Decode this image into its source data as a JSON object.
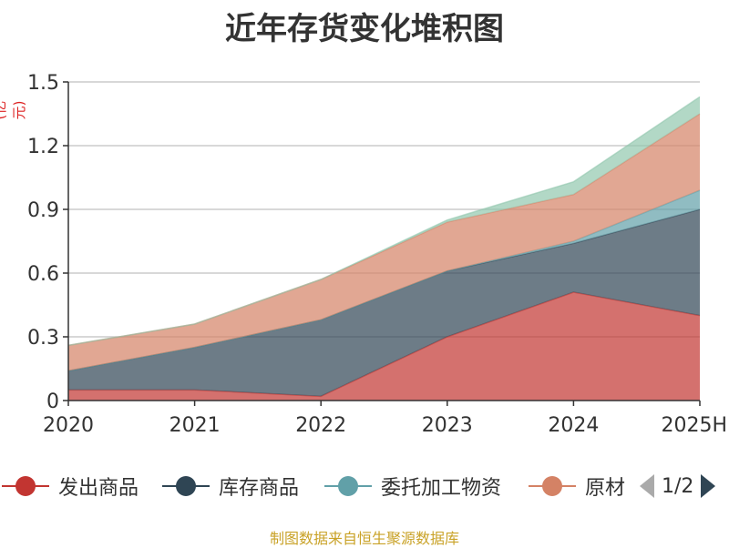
{
  "title": "近年存货变化堆积图",
  "unit": "(亿元)",
  "source": "制图数据来自恒生聚源数据库",
  "pager": {
    "label": "1/2"
  },
  "chart_data": {
    "type": "area",
    "stacked": true,
    "categories": [
      "2020",
      "2021",
      "2022",
      "2023",
      "2024",
      "2025H"
    ],
    "ylim": [
      0,
      1.5
    ],
    "yticks": [
      0,
      0.3,
      0.6,
      0.9,
      1.2,
      1.5
    ],
    "ytick_labels": [
      "0",
      "0.3",
      "0.6",
      "0.9",
      "1.2",
      "1.5"
    ],
    "grid": true,
    "legend_position": "bottom",
    "series": [
      {
        "name": "发出商品",
        "color": "#c23531",
        "values": [
          0.05,
          0.05,
          0.02,
          0.3,
          0.51,
          0.4
        ]
      },
      {
        "name": "库存商品",
        "color": "#2f4554",
        "values": [
          0.09,
          0.2,
          0.36,
          0.31,
          0.23,
          0.5
        ]
      },
      {
        "name": "委托加工物资",
        "color": "#61a0a8",
        "values": [
          0.0,
          0.0,
          0.0,
          0.0,
          0.01,
          0.09
        ]
      },
      {
        "name": "原材料",
        "color": "#d48265",
        "values": [
          0.12,
          0.11,
          0.19,
          0.23,
          0.22,
          0.36
        ]
      },
      {
        "name": "",
        "color": "#91c7ae",
        "values": [
          0.0,
          0.0,
          0.0,
          0.01,
          0.06,
          0.08
        ]
      }
    ]
  }
}
